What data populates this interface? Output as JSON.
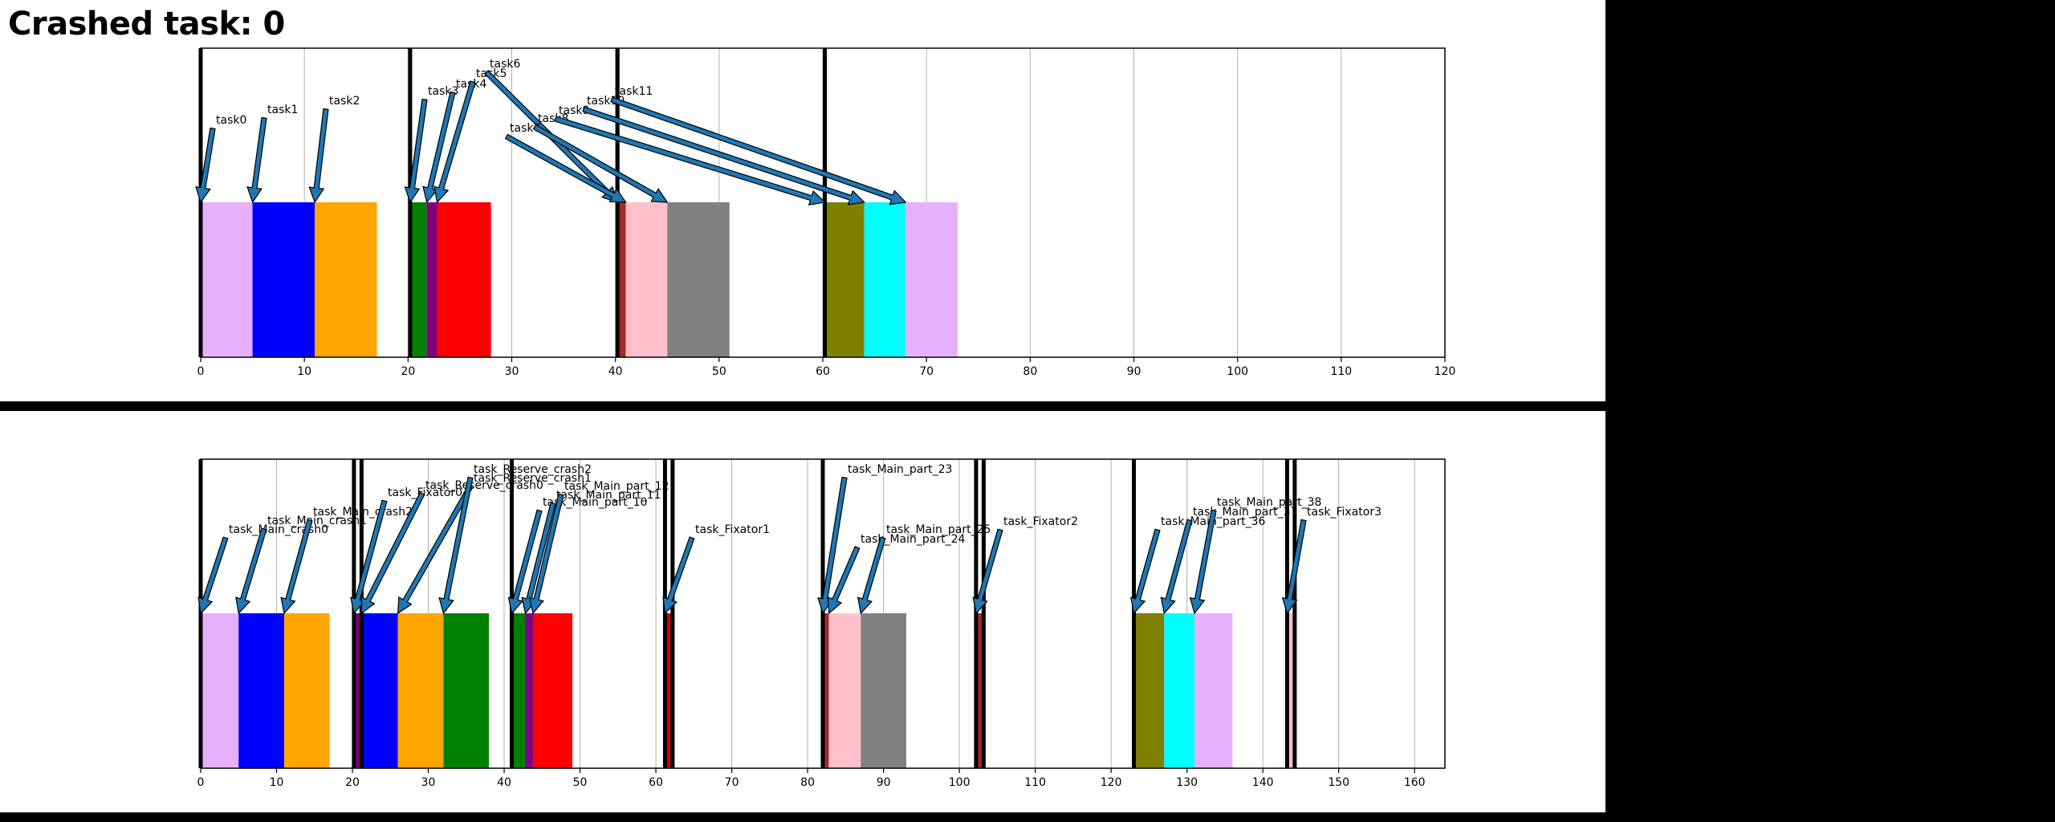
{
  "title": "Crashed task: 0",
  "chart_data": [
    {
      "type": "bar",
      "xlim": [
        0,
        120
      ],
      "xticks": [
        0,
        10,
        20,
        30,
        40,
        50,
        60,
        70,
        80,
        90,
        100,
        110,
        120
      ],
      "grid": "vertical",
      "markers": [
        0,
        20.2,
        40.2,
        60.2
      ],
      "bars": [
        {
          "label": "task0",
          "start": 0,
          "end": 5,
          "color": "#e6b0ff"
        },
        {
          "label": "task1",
          "start": 5,
          "end": 11,
          "color": "#0000ff"
        },
        {
          "label": "task2",
          "start": 11,
          "end": 17,
          "color": "#ffa500"
        },
        {
          "label": "task3",
          "start": 20.2,
          "end": 21.8,
          "color": "#008000"
        },
        {
          "label": "task4",
          "start": 21.8,
          "end": 22.8,
          "color": "#800080"
        },
        {
          "label": "task5",
          "start": 22.8,
          "end": 28,
          "color": "#ff0000"
        },
        {
          "label": "task6",
          "start": 40.2,
          "end": 41,
          "color": "#a52a2a"
        },
        {
          "label": "task7",
          "start": 41,
          "end": 45,
          "color": "#ffc0cb"
        },
        {
          "label": "task8",
          "start": 45,
          "end": 51,
          "color": "#808080"
        },
        {
          "label": "task9",
          "start": 60.2,
          "end": 64,
          "color": "#808000"
        },
        {
          "label": "task10",
          "start": 64,
          "end": 68,
          "color": "#00ffff"
        },
        {
          "label": "task11",
          "start": 68,
          "end": 73,
          "color": "#e6b0ff"
        }
      ]
    },
    {
      "type": "bar",
      "xlim": [
        0,
        164
      ],
      "xticks": [
        0,
        10,
        20,
        30,
        40,
        50,
        60,
        70,
        80,
        90,
        100,
        110,
        120,
        130,
        140,
        150,
        160
      ],
      "grid": "vertical",
      "markers": [
        0,
        20.2,
        21.2,
        41,
        61.2,
        62.2,
        82,
        102.2,
        103.2,
        123,
        143.2,
        144.2
      ],
      "bars": [
        {
          "label": "task_Main_crash0",
          "start": 0,
          "end": 5,
          "color": "#e6b0ff"
        },
        {
          "label": "task_Main_crash1",
          "start": 5,
          "end": 11,
          "color": "#0000ff"
        },
        {
          "label": "task_Main_crash2",
          "start": 11,
          "end": 17,
          "color": "#ffa500"
        },
        {
          "label": "task_Fixator0",
          "start": 20.2,
          "end": 21.2,
          "color": "#800080"
        },
        {
          "label": "task_Reserve_crash0",
          "start": 21.2,
          "end": 26,
          "color": "#0000ff"
        },
        {
          "label": "task_Reserve_crash1",
          "start": 26,
          "end": 32,
          "color": "#ffa500"
        },
        {
          "label": "task_Reserve_crash2",
          "start": 32,
          "end": 38,
          "color": "#008000"
        },
        {
          "label": "task_Main_part_10",
          "start": 41,
          "end": 42.8,
          "color": "#008000"
        },
        {
          "label": "task_Main_part_11",
          "start": 42.8,
          "end": 43.8,
          "color": "#800080"
        },
        {
          "label": "task_Main_part_12",
          "start": 43.8,
          "end": 49,
          "color": "#ff0000"
        },
        {
          "label": "task_Fixator1",
          "start": 61.2,
          "end": 62.2,
          "color": "#cc0000"
        },
        {
          "label": "task_Main_part_23",
          "start": 82,
          "end": 82.8,
          "color": "#a52a2a"
        },
        {
          "label": "task_Main_part_24",
          "start": 82.8,
          "end": 87,
          "color": "#ffc0cb"
        },
        {
          "label": "task_Main_part_25",
          "start": 87,
          "end": 93,
          "color": "#808080"
        },
        {
          "label": "task_Fixator2",
          "start": 102.2,
          "end": 103.2,
          "color": "#a52a2a"
        },
        {
          "label": "task_Main_part_36",
          "start": 123,
          "end": 127,
          "color": "#808000"
        },
        {
          "label": "task_Main_part_37",
          "start": 127,
          "end": 131,
          "color": "#00ffff"
        },
        {
          "label": "task_Main_part_38",
          "start": 131,
          "end": 136,
          "color": "#e6b0ff"
        },
        {
          "label": "task_Fixator3",
          "start": 143.2,
          "end": 144.2,
          "color": "#ffc0cb"
        }
      ]
    }
  ]
}
